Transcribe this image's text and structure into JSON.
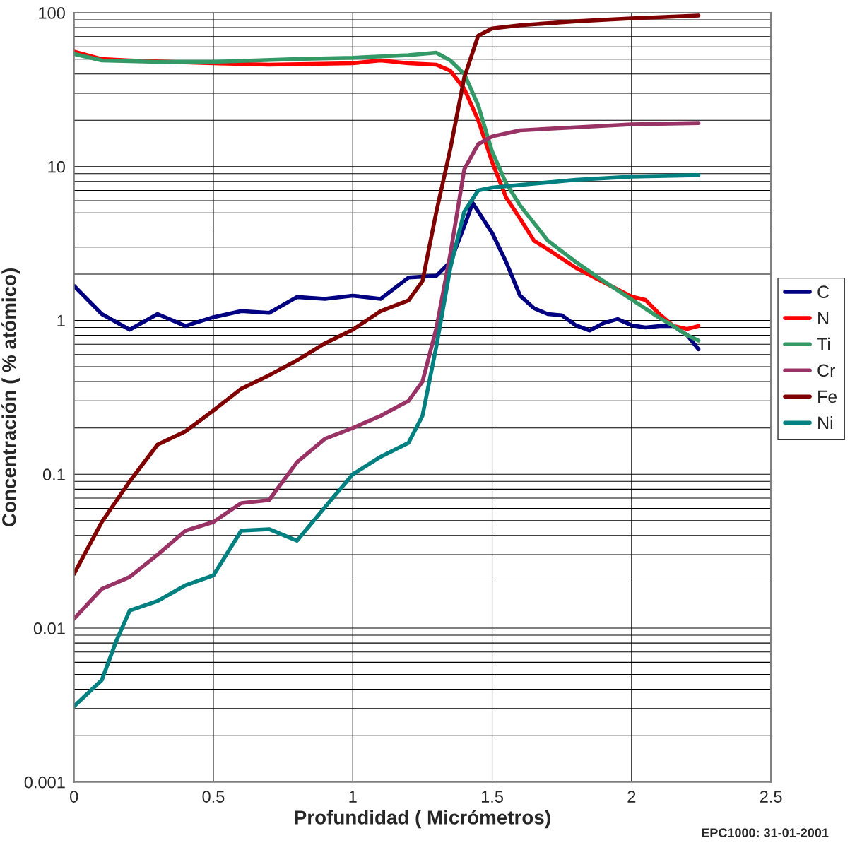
{
  "chart_data": {
    "type": "line",
    "xlabel": "Profundidad ( Micrómetros)",
    "ylabel": "Concentración ( % atómico)",
    "log": "y",
    "xlim": [
      0,
      2.5
    ],
    "xticks": [
      0,
      0.5,
      1,
      1.5,
      2,
      2.5
    ],
    "ylim": [
      0.001,
      100
    ],
    "yticks": [
      0.001,
      0.01,
      0.1,
      1,
      10,
      100
    ],
    "grid": true,
    "legend": "right",
    "marker": "none",
    "line_style": "solid",
    "annotations": [
      "EPC1000: 31-01-2001"
    ],
    "series": [
      {
        "name": "C",
        "color": "#000080",
        "x": [
          0,
          0.1,
          0.2,
          0.3,
          0.4,
          0.5,
          0.6,
          0.7,
          0.8,
          0.9,
          1.0,
          1.1,
          1.2,
          1.3,
          1.35,
          1.4,
          1.43,
          1.5,
          1.55,
          1.6,
          1.65,
          1.7,
          1.75,
          1.8,
          1.85,
          1.9,
          1.95,
          2.0,
          2.05,
          2.1,
          2.15,
          2.2,
          2.24
        ],
        "values": [
          1.68,
          1.1,
          0.87,
          1.1,
          0.92,
          1.05,
          1.15,
          1.12,
          1.42,
          1.38,
          1.45,
          1.38,
          1.9,
          1.95,
          2.4,
          4.1,
          5.8,
          3.7,
          2.4,
          1.45,
          1.2,
          1.1,
          1.08,
          0.93,
          0.86,
          0.96,
          1.02,
          0.93,
          0.9,
          0.92,
          0.92,
          0.8,
          0.65
        ]
      },
      {
        "name": "N",
        "color": "#ff0000",
        "x": [
          0,
          0.1,
          0.2,
          0.5,
          0.7,
          1.0,
          1.1,
          1.2,
          1.3,
          1.35,
          1.4,
          1.45,
          1.5,
          1.55,
          1.6,
          1.65,
          1.7,
          1.8,
          1.9,
          2.0,
          2.05,
          2.1,
          2.15,
          2.2,
          2.24
        ],
        "values": [
          56,
          50,
          49,
          47,
          46,
          47,
          49,
          47,
          46,
          42,
          32,
          20,
          10.7,
          6.3,
          4.6,
          3.3,
          2.9,
          2.2,
          1.77,
          1.43,
          1.36,
          1.1,
          0.92,
          0.88,
          0.92
        ]
      },
      {
        "name": "Ti",
        "color": "#339966",
        "x": [
          0,
          0.1,
          0.3,
          0.5,
          0.8,
          1.0,
          1.2,
          1.3,
          1.35,
          1.4,
          1.45,
          1.5,
          1.55,
          1.6,
          1.65,
          1.7,
          1.8,
          1.9,
          2.0,
          2.1,
          2.15,
          2.2,
          2.24
        ],
        "values": [
          54,
          49,
          48,
          48,
          50,
          51,
          53,
          55,
          49,
          40,
          25,
          12.5,
          7.8,
          5.6,
          4.3,
          3.3,
          2.4,
          1.8,
          1.37,
          1.04,
          0.92,
          0.8,
          0.74
        ]
      },
      {
        "name": "Cr",
        "color": "#993366",
        "x": [
          0,
          0.1,
          0.2,
          0.3,
          0.4,
          0.5,
          0.6,
          0.7,
          0.8,
          0.9,
          1.0,
          1.1,
          1.2,
          1.25,
          1.3,
          1.35,
          1.4,
          1.45,
          1.5,
          1.6,
          1.8,
          2.0,
          2.24
        ],
        "values": [
          0.0115,
          0.018,
          0.0215,
          0.03,
          0.043,
          0.049,
          0.065,
          0.068,
          0.12,
          0.17,
          0.2,
          0.24,
          0.3,
          0.4,
          0.89,
          2.7,
          9.6,
          14,
          15.7,
          17.2,
          18,
          18.8,
          19.2
        ]
      },
      {
        "name": "Fe",
        "color": "#800000",
        "x": [
          0,
          0.1,
          0.2,
          0.3,
          0.4,
          0.5,
          0.6,
          0.7,
          0.8,
          0.9,
          1.0,
          1.1,
          1.2,
          1.25,
          1.3,
          1.35,
          1.4,
          1.45,
          1.5,
          1.6,
          1.8,
          2.0,
          2.24
        ],
        "values": [
          0.0225,
          0.049,
          0.09,
          0.156,
          0.19,
          0.26,
          0.36,
          0.44,
          0.55,
          0.71,
          0.87,
          1.15,
          1.35,
          1.8,
          5.1,
          13,
          38,
          71,
          79,
          83,
          88,
          92,
          96
        ]
      },
      {
        "name": "Ni",
        "color": "#008080",
        "x": [
          0,
          0.1,
          0.15,
          0.2,
          0.3,
          0.4,
          0.5,
          0.6,
          0.7,
          0.8,
          0.9,
          1.0,
          1.1,
          1.2,
          1.25,
          1.3,
          1.35,
          1.4,
          1.45,
          1.5,
          1.6,
          1.8,
          2.0,
          2.24
        ],
        "values": [
          0.0031,
          0.0046,
          0.0081,
          0.013,
          0.015,
          0.019,
          0.022,
          0.043,
          0.044,
          0.037,
          0.061,
          0.1,
          0.13,
          0.16,
          0.24,
          0.68,
          2.2,
          5.1,
          7,
          7.3,
          7.6,
          8.2,
          8.6,
          8.8
        ]
      }
    ]
  }
}
